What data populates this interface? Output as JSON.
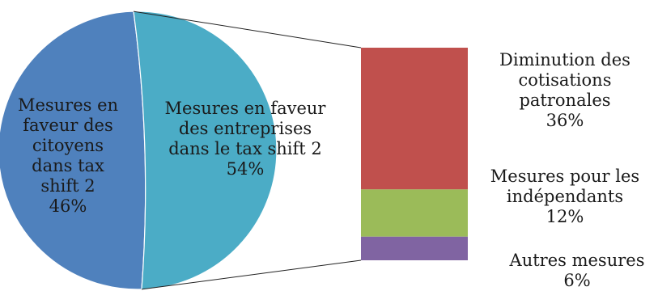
{
  "chart_data": {
    "type": "bar-of-pie",
    "pie": {
      "slices": [
        {
          "label": [
            "Mesures en",
            "faveur des",
            "citoyens",
            "dans tax",
            "shift 2"
          ],
          "value": 46,
          "value_label": "46%",
          "color": "#4f81bd"
        },
        {
          "label": [
            "Mesures en faveur",
            "des entreprises",
            "dans le tax shift 2"
          ],
          "value": 54,
          "value_label": "54%",
          "color": "#4bacc6"
        }
      ]
    },
    "bar": {
      "segments": [
        {
          "label": [
            "Diminution des",
            "cotisations",
            "patronales"
          ],
          "value": 36,
          "value_label": "36%",
          "color": "#c0504d"
        },
        {
          "label": [
            "Mesures pour les",
            "indépendants"
          ],
          "value": 12,
          "value_label": "12%",
          "color": "#9bbb59"
        },
        {
          "label": [
            "Autres mesures"
          ],
          "value": 6,
          "value_label": "6%",
          "color": "#8064a2"
        }
      ]
    }
  }
}
